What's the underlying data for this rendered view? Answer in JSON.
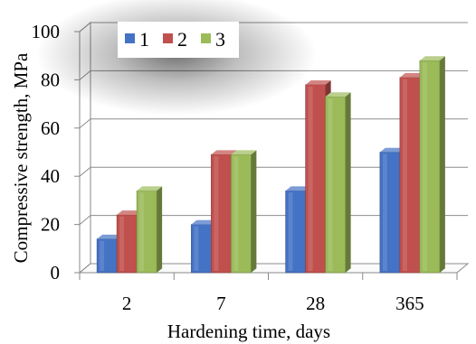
{
  "chart_data": {
    "type": "bar",
    "categories": [
      "2",
      "7",
      "28",
      "365"
    ],
    "series": [
      {
        "name": "1",
        "values": [
          14,
          20,
          34,
          50
        ],
        "color": "#4472C4"
      },
      {
        "name": "2",
        "values": [
          24,
          49,
          78,
          81
        ],
        "color": "#C0504D"
      },
      {
        "name": "3",
        "values": [
          34,
          49,
          73,
          88
        ],
        "color": "#9BBB59"
      }
    ],
    "xlabel": "Hardening time, days",
    "ylabel": "Compressive strength, MPa",
    "ylim": [
      0,
      100
    ],
    "yticks": [
      "0",
      "20",
      "40",
      "60",
      "80",
      "100"
    ],
    "grid": true,
    "legend": "top-left",
    "style": "3d-column"
  }
}
